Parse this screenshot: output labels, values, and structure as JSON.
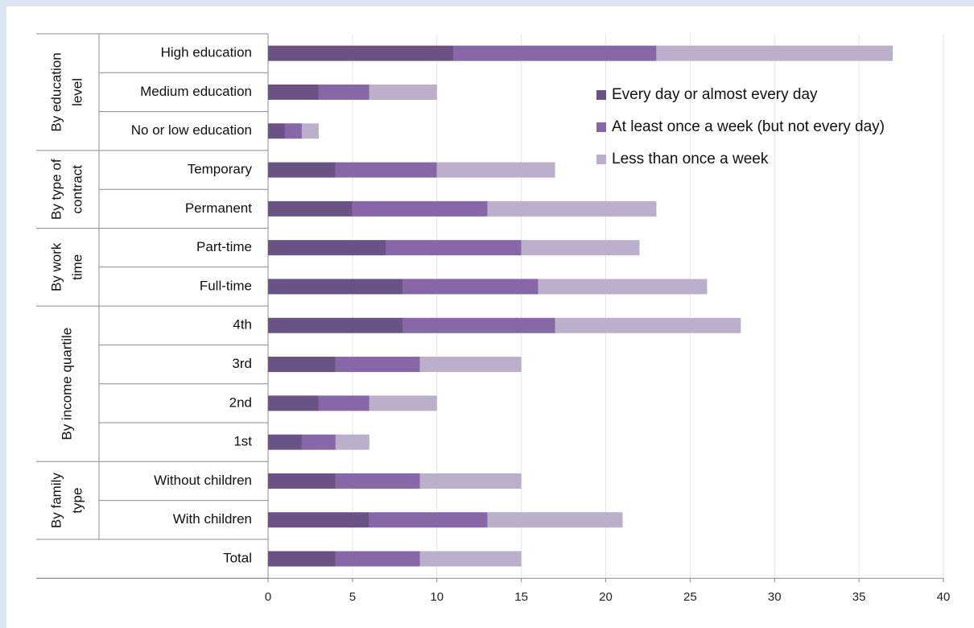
{
  "chart_data": {
    "type": "bar",
    "orientation": "horizontal",
    "stacked": true,
    "categories": [
      "High education",
      "Medium education",
      "No or low education",
      "Temporary",
      "Permanent",
      "Part-time",
      "Full-time",
      "4th",
      "3rd",
      "2nd",
      "1st",
      "Without children",
      "With children",
      "Total"
    ],
    "groups": [
      {
        "label": "By education level",
        "lines": [
          "By education",
          "level"
        ],
        "categories": [
          "High education",
          "Medium education",
          "No or low education"
        ]
      },
      {
        "label": "By type of contract",
        "lines": [
          "By type of",
          "contract"
        ],
        "categories": [
          "Temporary",
          "Permanent"
        ]
      },
      {
        "label": "By work time",
        "lines": [
          "By work",
          "time"
        ],
        "categories": [
          "Part-time",
          "Full-time"
        ]
      },
      {
        "label": "By income quartile",
        "lines": [
          "By income quartile"
        ],
        "categories": [
          "4th",
          "3rd",
          "2nd",
          "1st"
        ]
      },
      {
        "label": "By family type",
        "lines": [
          "By family",
          "type"
        ],
        "categories": [
          "Without children",
          "With children"
        ]
      },
      {
        "label": "",
        "lines": [],
        "categories": [
          "Total"
        ]
      }
    ],
    "series": [
      {
        "name": "Every day or almost every day",
        "color": "#6b5285",
        "values": [
          11,
          3,
          1,
          4,
          5,
          7,
          8,
          8,
          4,
          3,
          2,
          4,
          6,
          4
        ]
      },
      {
        "name": "At least once a week (but not every day)",
        "color": "#8867a8",
        "values": [
          12,
          3,
          1,
          6,
          8,
          8,
          8,
          9,
          5,
          3,
          2,
          5,
          7,
          5
        ]
      },
      {
        "name": "Less than once a week",
        "color": "#bbafcc",
        "values": [
          14,
          4,
          1,
          7,
          10,
          7,
          10,
          11,
          6,
          4,
          2,
          6,
          8,
          6
        ]
      }
    ],
    "xlim": [
      0,
      40
    ],
    "xticks": [
      0,
      5,
      10,
      15,
      20,
      25,
      30,
      35,
      40
    ],
    "grid": true,
    "legend_position": "top-right inside plot"
  }
}
